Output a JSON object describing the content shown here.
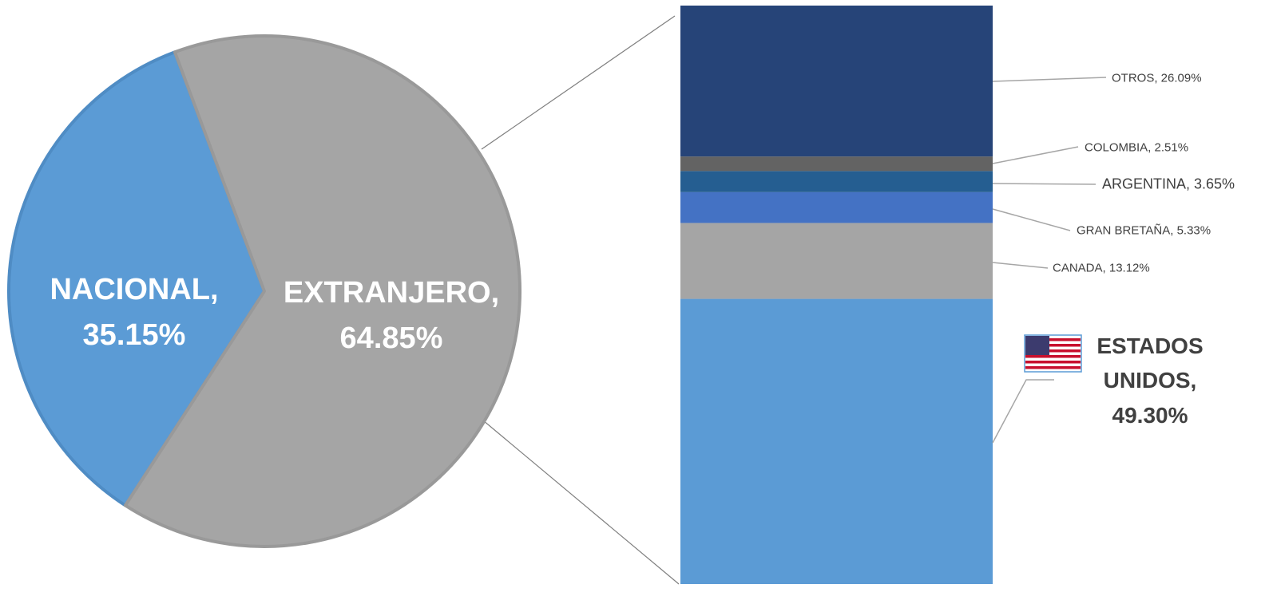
{
  "chart_data": [
    {
      "type": "pie",
      "values": [
        35.15,
        64.85
      ],
      "value_labels": [
        "NACIONAL, 35.15%",
        "EXTRANJERO, 64.85%"
      ],
      "colors": [
        "#5b9bd5",
        "#a5a5a5"
      ]
    },
    {
      "type": "stacked_bar",
      "values": [
        49.3,
        13.12,
        5.33,
        3.65,
        2.51,
        26.09
      ],
      "value_labels": [
        "ESTADOS UNIDOS, 49.30%",
        "CANADA, 13.12%",
        "GRAN BRETAÑA, 5.33%",
        "ARGENTINA, 3.65%",
        "COLOMBIA, 2.51%",
        "OTROS, 26.09%"
      ],
      "colors": [
        "#5b9bd5",
        "#a5a5a5",
        "#4472c4",
        "#255e91",
        "#636363",
        "#264478"
      ]
    }
  ]
}
